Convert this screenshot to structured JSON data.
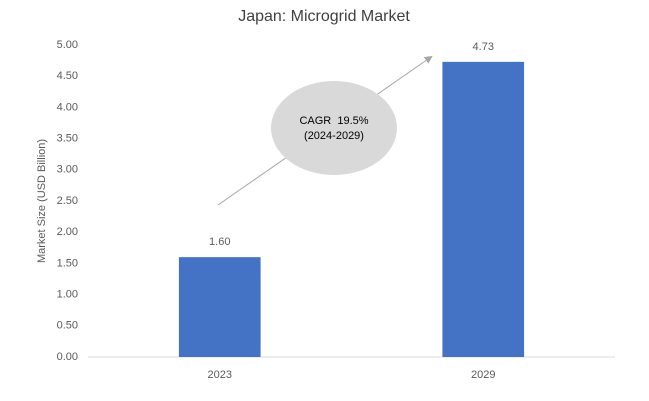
{
  "chart_data": {
    "type": "bar",
    "title": "Japan: Microgrid Market",
    "y_label": "Market Size (USD Billion)",
    "categories": [
      "2023",
      "2029"
    ],
    "values": [
      1.6,
      4.73
    ],
    "value_labels": [
      "1.60",
      "4.73"
    ],
    "color": "#4472c4",
    "ylim": [
      0,
      5
    ],
    "yticks": [
      {
        "value": 0,
        "label": "0.00"
      },
      {
        "value": 0.5,
        "label": "0.50"
      },
      {
        "value": 1,
        "label": "1.00"
      },
      {
        "value": 1.5,
        "label": "1.50"
      },
      {
        "value": 2,
        "label": "2.00"
      },
      {
        "value": 2.5,
        "label": "2.50"
      },
      {
        "value": 3,
        "label": "3.00"
      },
      {
        "value": 3.5,
        "label": "3.50"
      },
      {
        "value": 4,
        "label": "4.00"
      },
      {
        "value": 4.5,
        "label": "4.50"
      },
      {
        "value": 5,
        "label": "5.00"
      }
    ],
    "grid": false,
    "annotation": [
      "CAGR  19.5%",
      "(2024-2029)"
    ]
  }
}
